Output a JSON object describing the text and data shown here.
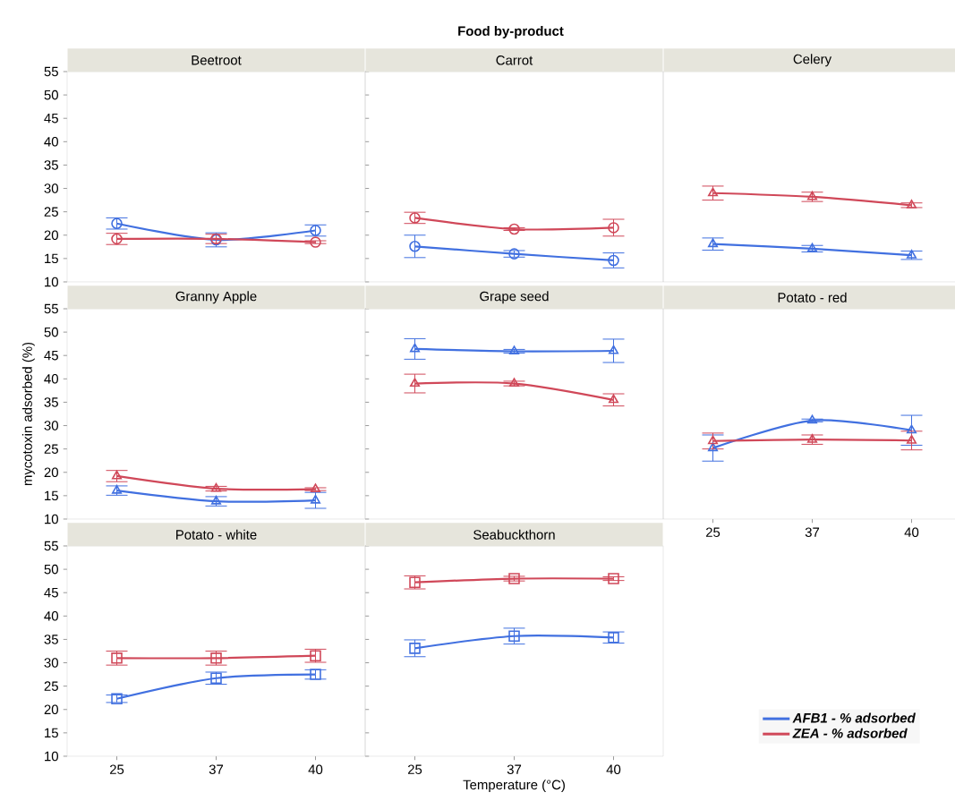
{
  "chart_data": [
    {
      "type": "line",
      "title": "Beetroot",
      "annotations": [
        "Food by-product"
      ],
      "categories": [
        "25",
        "37",
        "40"
      ],
      "ylim": [
        10,
        55
      ],
      "yticks": [
        10,
        15,
        20,
        25,
        30,
        35,
        40,
        45,
        50,
        55
      ],
      "tick_labels": "y",
      "marker": "circle",
      "line_style": "solid",
      "series": [
        {
          "color": "#4170e0",
          "values": [
            22.5,
            19,
            21
          ],
          "errors": [
            1.2,
            1.5,
            1.2
          ]
        },
        {
          "color": "#d04859",
          "values": [
            19.2,
            19.2,
            18.5
          ],
          "errors": [
            1.2,
            1,
            0.3
          ]
        }
      ]
    },
    {
      "type": "line",
      "title": "Carrot",
      "categories": [
        "25",
        "37",
        "40"
      ],
      "ylim": [
        10,
        55
      ],
      "yticks": [
        10,
        15,
        20,
        25,
        30,
        35,
        40,
        45,
        50,
        55
      ],
      "tick_labels": false,
      "marker": "circle",
      "line_style": "solid",
      "series": [
        {
          "color": "#4170e0",
          "values": [
            17.6,
            16,
            14.6
          ],
          "errors": [
            2.4,
            0.7,
            1.6
          ]
        },
        {
          "color": "#d04859",
          "values": [
            23.7,
            21.3,
            21.6
          ],
          "errors": [
            1.2,
            0.3,
            1.8
          ]
        }
      ]
    },
    {
      "type": "line",
      "title": "Celery",
      "categories": [
        "25",
        "37",
        "40"
      ],
      "ylim": [
        10,
        55
      ],
      "yticks": [
        10,
        15,
        20,
        25,
        30,
        35,
        40,
        45,
        50,
        55
      ],
      "tick_labels": false,
      "marker": "triangle",
      "line_style": "solid",
      "series": [
        {
          "color": "#4170e0",
          "values": [
            18.1,
            17.1,
            15.7
          ],
          "errors": [
            1.3,
            0.7,
            0.9
          ]
        },
        {
          "color": "#d04859",
          "values": [
            29,
            28.2,
            26.4
          ],
          "errors": [
            1.5,
            1,
            0.5
          ]
        }
      ]
    },
    {
      "type": "line",
      "title": "Granny Apple",
      "ylabel": "mycotoxin adsorbed (%)",
      "categories": [
        "25",
        "37",
        "40"
      ],
      "ylim": [
        10,
        55
      ],
      "yticks": [
        10,
        15,
        20,
        25,
        30,
        35,
        40,
        45,
        50,
        55
      ],
      "tick_labels": "y",
      "marker": "triangle",
      "line_style": "solid",
      "series": [
        {
          "color": "#4170e0",
          "values": [
            16.1,
            13.8,
            14
          ],
          "errors": [
            1,
            1,
            1.7
          ]
        },
        {
          "color": "#d04859",
          "values": [
            19.2,
            16.5,
            16.4
          ],
          "errors": [
            1.2,
            0.5,
            0.3
          ]
        }
      ]
    },
    {
      "type": "line",
      "title": "Grape seed",
      "categories": [
        "25",
        "37",
        "40"
      ],
      "ylim": [
        10,
        55
      ],
      "yticks": [
        10,
        15,
        20,
        25,
        30,
        35,
        40,
        45,
        50,
        55
      ],
      "tick_labels": false,
      "marker": "triangle",
      "line_style": "solid",
      "series": [
        {
          "color": "#4170e0",
          "values": [
            46.4,
            45.9,
            46
          ],
          "errors": [
            2.2,
            0.4,
            2.5
          ]
        },
        {
          "color": "#d04859",
          "values": [
            39,
            39,
            35.5
          ],
          "errors": [
            2,
            0.5,
            1.3
          ]
        }
      ]
    },
    {
      "type": "line",
      "title": "Potato - red",
      "categories": [
        "25",
        "37",
        "40"
      ],
      "ylim": [
        10,
        55
      ],
      "yticks": [
        10,
        15,
        20,
        25,
        30,
        35,
        40,
        45,
        50,
        55
      ],
      "tick_labels": "x",
      "marker": "triangle",
      "line_style": "solid",
      "series": [
        {
          "color": "#4170e0",
          "values": [
            25.2,
            31.1,
            29
          ],
          "errors": [
            2.8,
            0.3,
            3.2
          ]
        },
        {
          "color": "#d04859",
          "values": [
            26.7,
            27,
            26.8
          ],
          "errors": [
            1.7,
            1,
            2
          ]
        }
      ]
    },
    {
      "type": "line",
      "title": "Potato - white",
      "categories": [
        "25",
        "37",
        "40"
      ],
      "ylim": [
        10,
        55
      ],
      "yticks": [
        10,
        15,
        20,
        25,
        30,
        35,
        40,
        45,
        50,
        55
      ],
      "marker": "square",
      "line_style": "solid",
      "series": [
        {
          "color": "#4170e0",
          "values": [
            22.3,
            26.7,
            27.5
          ],
          "errors": [
            0.8,
            1.3,
            1
          ]
        },
        {
          "color": "#d04859",
          "values": [
            31,
            31,
            31.5
          ],
          "errors": [
            1.5,
            1.5,
            1.4
          ]
        }
      ]
    },
    {
      "type": "line",
      "title": "Seabuckthorn",
      "xlabel": "Temperature (°C)",
      "categories": [
        "25",
        "37",
        "40"
      ],
      "ylim": [
        10,
        55
      ],
      "yticks": [
        10,
        15,
        20,
        25,
        30,
        35,
        40,
        45,
        50,
        55
      ],
      "tick_labels": "x",
      "marker": "square",
      "line_style": "solid",
      "legend": "right",
      "series": [
        {
          "name": "AFB1 - % adsorbed",
          "color": "#4170e0",
          "values": [
            33.1,
            35.7,
            35.4
          ],
          "errors": [
            1.8,
            1.7,
            1.2
          ]
        },
        {
          "name": "ZEA - % adsorbed",
          "color": "#d04859",
          "values": [
            47.2,
            48,
            48
          ],
          "errors": [
            1.4,
            0.5,
            0.4
          ]
        }
      ]
    }
  ]
}
